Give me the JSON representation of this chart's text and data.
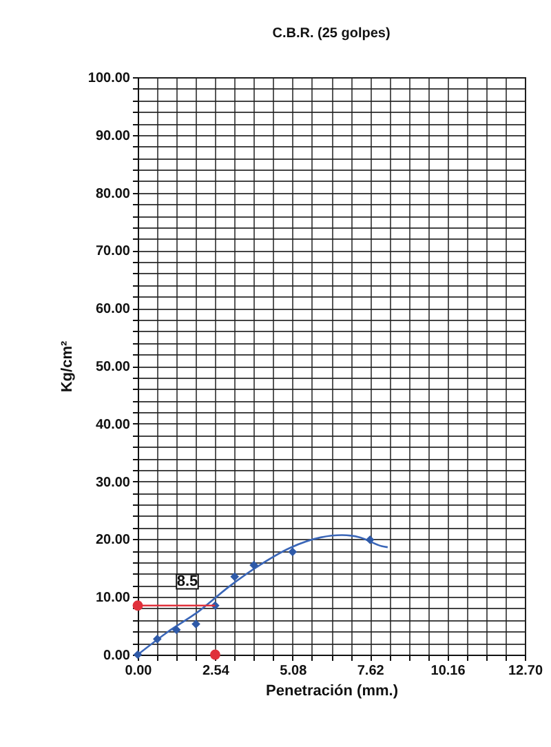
{
  "chart_data": {
    "type": "scatter",
    "title": "C.B.R. (25 golpes)",
    "xlabel": "Penetración (mm.)",
    "ylabel": "Kg/cm²",
    "xlim": [
      0,
      12.7
    ],
    "ylim": [
      0,
      100
    ],
    "xticks": [
      {
        "value": 0,
        "label": "0.00"
      },
      {
        "value": 0.635,
        "label": null
      },
      {
        "value": 1.27,
        "label": null
      },
      {
        "value": 1.905,
        "label": null
      },
      {
        "value": 2.54,
        "label": "2.54"
      },
      {
        "value": 3.175,
        "label": null
      },
      {
        "value": 3.81,
        "label": null
      },
      {
        "value": 4.445,
        "label": null
      },
      {
        "value": 5.08,
        "label": "5.08"
      },
      {
        "value": 5.715,
        "label": null
      },
      {
        "value": 6.35,
        "label": null
      },
      {
        "value": 6.985,
        "label": null
      },
      {
        "value": 7.62,
        "label": "7.62"
      },
      {
        "value": 8.255,
        "label": null
      },
      {
        "value": 8.89,
        "label": null
      },
      {
        "value": 9.525,
        "label": null
      },
      {
        "value": 10.16,
        "label": "10.16"
      },
      {
        "value": 10.795,
        "label": null
      },
      {
        "value": 11.43,
        "label": null
      },
      {
        "value": 12.065,
        "label": null
      },
      {
        "value": 12.7,
        "label": "12.70"
      }
    ],
    "yticks": [
      {
        "value": 0,
        "label": "0.00"
      },
      {
        "value": 2,
        "label": null
      },
      {
        "value": 4,
        "label": null
      },
      {
        "value": 6,
        "label": null
      },
      {
        "value": 8,
        "label": null
      },
      {
        "value": 10,
        "label": "10.00"
      },
      {
        "value": 12,
        "label": null
      },
      {
        "value": 14,
        "label": null
      },
      {
        "value": 16,
        "label": null
      },
      {
        "value": 18,
        "label": null
      },
      {
        "value": 20,
        "label": "20.00"
      },
      {
        "value": 22,
        "label": null
      },
      {
        "value": 24,
        "label": null
      },
      {
        "value": 26,
        "label": null
      },
      {
        "value": 28,
        "label": null
      },
      {
        "value": 30,
        "label": "30.00"
      },
      {
        "value": 32,
        "label": null
      },
      {
        "value": 34,
        "label": null
      },
      {
        "value": 36,
        "label": null
      },
      {
        "value": 38,
        "label": null
      },
      {
        "value": 40,
        "label": "40.00"
      },
      {
        "value": 42,
        "label": null
      },
      {
        "value": 44,
        "label": null
      },
      {
        "value": 46,
        "label": null
      },
      {
        "value": 48,
        "label": null
      },
      {
        "value": 50,
        "label": "50.00"
      },
      {
        "value": 52,
        "label": null
      },
      {
        "value": 54,
        "label": null
      },
      {
        "value": 56,
        "label": null
      },
      {
        "value": 58,
        "label": null
      },
      {
        "value": 60,
        "label": "60.00"
      },
      {
        "value": 62,
        "label": null
      },
      {
        "value": 64,
        "label": null
      },
      {
        "value": 66,
        "label": null
      },
      {
        "value": 68,
        "label": null
      },
      {
        "value": 70,
        "label": "70.00"
      },
      {
        "value": 72,
        "label": null
      },
      {
        "value": 74,
        "label": null
      },
      {
        "value": 76,
        "label": null
      },
      {
        "value": 78,
        "label": null
      },
      {
        "value": 80,
        "label": "80.00"
      },
      {
        "value": 82,
        "label": null
      },
      {
        "value": 84,
        "label": null
      },
      {
        "value": 86,
        "label": null
      },
      {
        "value": 88,
        "label": null
      },
      {
        "value": 90,
        "label": "90.00"
      },
      {
        "value": 92,
        "label": null
      },
      {
        "value": 94,
        "label": null
      },
      {
        "value": 96,
        "label": null
      },
      {
        "value": 98,
        "label": null
      },
      {
        "value": 100,
        "label": "100.00"
      }
    ],
    "grid": true,
    "series": [
      {
        "type": "line",
        "color": "#3a66b8",
        "marker": "none",
        "x": [
          0,
          1,
          2,
          3,
          4,
          5,
          6,
          6.7,
          7.3,
          8.0,
          8.2
        ],
        "values": [
          0,
          4,
          7.5,
          11.8,
          15.5,
          18.5,
          20.3,
          20.7,
          20.3,
          18.8,
          18.6
        ]
      },
      {
        "color": "#2f5aa8",
        "marker": "diamond",
        "x": [
          0,
          0.64,
          1.27,
          1.91,
          2.54,
          3.18,
          3.81,
          5.08,
          7.62
        ],
        "values": [
          0,
          2.7,
          4.3,
          5.3,
          8.5,
          13.5,
          15.5,
          17.8,
          19.9
        ]
      },
      {
        "type": "line",
        "color": "#e0303a",
        "marker": "none",
        "x": [
          0,
          2.54
        ],
        "values": [
          8.5,
          8.5
        ]
      },
      {
        "color": "#e0303a",
        "marker": "circle",
        "x": [
          0,
          2.54
        ],
        "values": [
          8.5,
          0
        ]
      }
    ],
    "annotations": [
      "8.5"
    ]
  }
}
